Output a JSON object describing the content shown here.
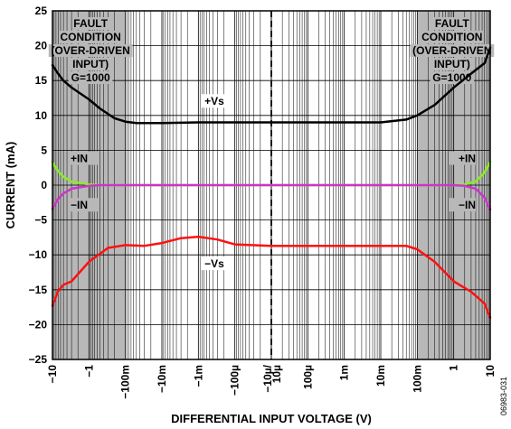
{
  "chart_data": {
    "type": "line",
    "title": "",
    "xlabel": "DIFFERENTIAL INPUT VOLTAGE (V)",
    "ylabel": "CURRENT (mA)",
    "ylim": [
      -25,
      25
    ],
    "yticks": [
      -25,
      -20,
      -15,
      -10,
      -5,
      0,
      5,
      10,
      15,
      20,
      25
    ],
    "xscale": "symmetric-log",
    "x_ticks": [
      {
        "label": "−10",
        "value": -10
      },
      {
        "label": "−1",
        "value": -1
      },
      {
        "label": "−100m",
        "value": -0.1
      },
      {
        "label": "−10m",
        "value": -0.01
      },
      {
        "label": "−1m",
        "value": -0.001
      },
      {
        "label": "−100µ",
        "value": -0.0001
      },
      {
        "label": "−10µ/",
        "value": -1e-05
      },
      {
        "label": "10µ",
        "value": 1e-05
      },
      {
        "label": "100µ",
        "value": 0.0001
      },
      {
        "label": "1m",
        "value": 0.001
      },
      {
        "label": "10m",
        "value": 0.01
      },
      {
        "label": "100m",
        "value": 0.1
      },
      {
        "label": "1",
        "value": 1
      },
      {
        "label": "10",
        "value": 10
      }
    ],
    "grid": true,
    "series": [
      {
        "name": "+Vs",
        "color": "#000000",
        "points": [
          [
            -10,
            17.2
          ],
          [
            -7,
            16
          ],
          [
            -5,
            15
          ],
          [
            -3,
            14
          ],
          [
            -1,
            12.3
          ],
          [
            -0.5,
            11
          ],
          [
            -0.2,
            9.6
          ],
          [
            -0.1,
            9.1
          ],
          [
            -0.05,
            8.9
          ],
          [
            -0.01,
            8.9
          ],
          [
            -0.001,
            9
          ],
          [
            -0.0001,
            9
          ],
          [
            -1e-05,
            9
          ],
          [
            1e-05,
            9
          ],
          [
            0.0001,
            9
          ],
          [
            0.001,
            9
          ],
          [
            0.01,
            9
          ],
          [
            0.05,
            9.4
          ],
          [
            0.1,
            10
          ],
          [
            0.3,
            11.5
          ],
          [
            1,
            14
          ],
          [
            3,
            16
          ],
          [
            7,
            17.5
          ],
          [
            10,
            19.7
          ]
        ]
      },
      {
        "name": "+IN",
        "color": "#88ee22",
        "points": [
          [
            -10,
            3.3
          ],
          [
            -7,
            2
          ],
          [
            -5,
            1.2
          ],
          [
            -3,
            0.5
          ],
          [
            -1,
            0.1
          ],
          [
            -0.5,
            0
          ],
          [
            -1e-05,
            0
          ],
          [
            1e-05,
            0
          ],
          [
            1,
            0
          ],
          [
            2,
            0.1
          ],
          [
            4,
            0.5
          ],
          [
            7,
            1.8
          ],
          [
            10,
            3.4
          ]
        ]
      },
      {
        "name": "−IN",
        "color": "#cc33cc",
        "points": [
          [
            -10,
            -3.4
          ],
          [
            -7,
            -2
          ],
          [
            -5,
            -1.2
          ],
          [
            -3,
            -0.5
          ],
          [
            -1,
            -0.1
          ],
          [
            -0.5,
            0
          ],
          [
            -1e-05,
            0
          ],
          [
            1e-05,
            0
          ],
          [
            1,
            0
          ],
          [
            2,
            -0.1
          ],
          [
            4,
            -0.5
          ],
          [
            7,
            -1.8
          ],
          [
            10,
            -3.5
          ]
        ]
      },
      {
        "name": "−Vs",
        "color": "#ff1111",
        "points": [
          [
            -10,
            -17.3
          ],
          [
            -7,
            -15.2
          ],
          [
            -5,
            -14.3
          ],
          [
            -3,
            -13.8
          ],
          [
            -1,
            -11
          ],
          [
            -0.3,
            -9
          ],
          [
            -0.1,
            -8.6
          ],
          [
            -0.03,
            -8.7
          ],
          [
            -0.01,
            -8.3
          ],
          [
            -0.003,
            -7.6
          ],
          [
            -0.001,
            -7.4
          ],
          [
            -0.0003,
            -7.8
          ],
          [
            -0.0001,
            -8.5
          ],
          [
            -1e-05,
            -8.7
          ],
          [
            1e-05,
            -8.7
          ],
          [
            0.0001,
            -8.7
          ],
          [
            0.001,
            -8.7
          ],
          [
            0.01,
            -8.7
          ],
          [
            0.05,
            -8.7
          ],
          [
            0.1,
            -9.2
          ],
          [
            0.3,
            -11
          ],
          [
            1,
            -13.8
          ],
          [
            3,
            -15.3
          ],
          [
            7,
            -17
          ],
          [
            10,
            -19
          ]
        ]
      }
    ],
    "annotations": [
      {
        "lines": [
          "FAULT",
          "CONDITION",
          "(OVER-DRIVEN",
          "INPUT)",
          "G=1000"
        ],
        "side": "left"
      },
      {
        "lines": [
          "FAULT",
          "CONDITION",
          "(OVER-DRIVEN",
          "INPUT)",
          "G=1000"
        ],
        "side": "right"
      }
    ],
    "figure_code": "06983-031"
  }
}
